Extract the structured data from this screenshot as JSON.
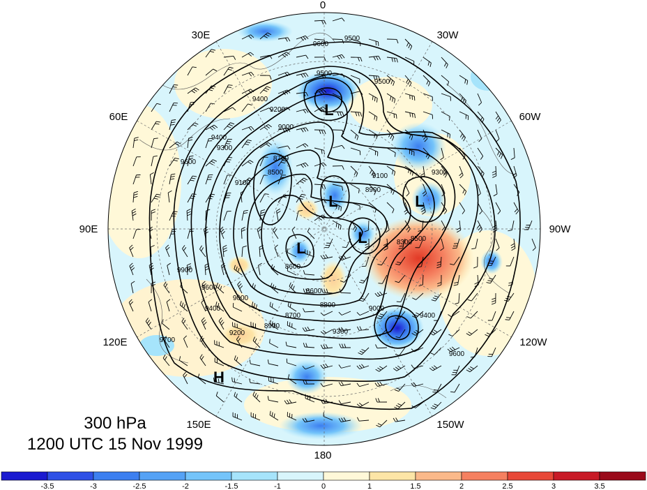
{
  "title": {
    "level": "300 hPa",
    "datetime": "1200 UTC 15 Nov 1999"
  },
  "longitude_labels": {
    "lon_0": "0",
    "lon_30w": "30W",
    "lon_60w": "60W",
    "lon_90w": "90W",
    "lon_120w": "120W",
    "lon_150w": "150W",
    "lon_180": "180",
    "lon_150e": "150E",
    "lon_120e": "120E",
    "lon_90e": "90E",
    "lon_60e": "60E",
    "lon_30e": "30E"
  },
  "centers": {
    "low_1": "L",
    "low_2": "L",
    "low_3": "L",
    "low_4": "L",
    "low_5": "L",
    "high_1": "H"
  },
  "contour_labels": [
    "9600",
    "9500",
    "9500",
    "9500",
    "9400",
    "9200",
    "9000",
    "8700",
    "8500",
    "9100",
    "9300",
    "9400",
    "9600",
    "9700",
    "9900",
    "9600",
    "9400",
    "9200",
    "9000",
    "8900",
    "8700",
    "8600",
    "8800",
    "9300",
    "9600",
    "9400",
    "9300",
    "9100",
    "8900",
    "8300",
    "8500",
    "9000",
    "8600"
  ],
  "colorbar": {
    "ticks": [
      "-3.5",
      "-3",
      "-2.5",
      "-2",
      "-1.5",
      "-1",
      "0",
      "1",
      "1.5",
      "2",
      "2.5",
      "3",
      "3.5"
    ],
    "colors": [
      "#1a1ad0",
      "#2e50e6",
      "#3c7ff0",
      "#55a2f5",
      "#74c4fa",
      "#a6e4fb",
      "#d8f5fc",
      "#fff8d8",
      "#fde5a6",
      "#fbb98a",
      "#f58060",
      "#e84838",
      "#c81a26",
      "#9a0a1a"
    ]
  },
  "colors": {
    "background": "#ffffff",
    "contour": "#000000",
    "boundary": "#000000"
  }
}
